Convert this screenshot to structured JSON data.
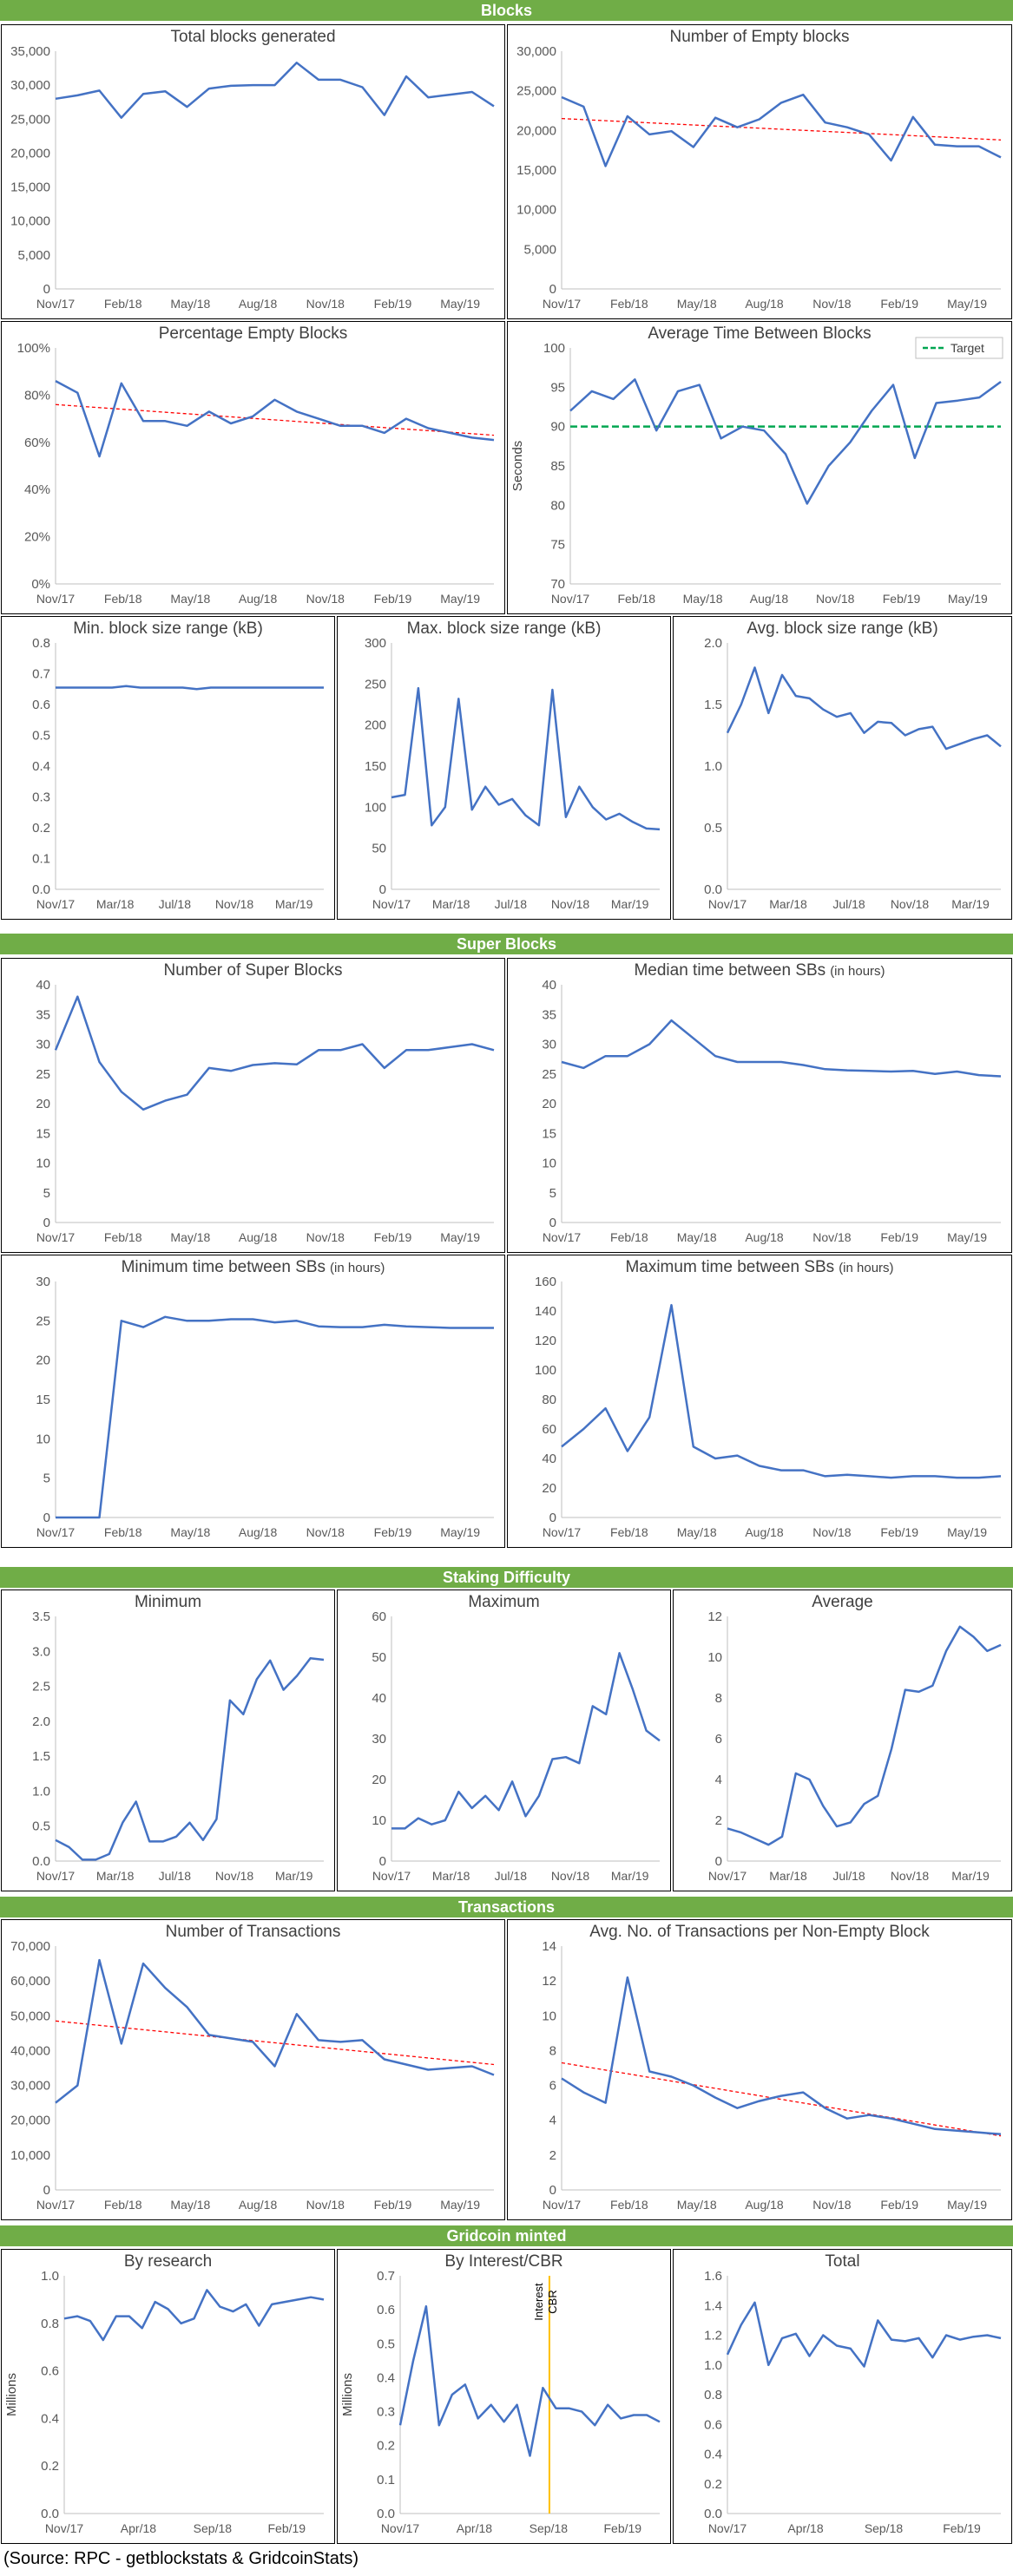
{
  "sections": {
    "blocks": "Blocks",
    "super_blocks": "Super Blocks",
    "staking": "Staking Difficulty",
    "transactions": "Transactions",
    "minted": "Gridcoin minted"
  },
  "source": "(Source: RPC - getblockstats & GridcoinStats)",
  "colors": {
    "series": "#4472c4",
    "trend": "#ff0000",
    "target": "#00a651",
    "marker": "#ffc000",
    "header": "#70ad47"
  },
  "chart_data": [
    {
      "id": "total_blocks",
      "type": "line",
      "title": "Total blocks generated",
      "ylim": [
        0,
        35000
      ],
      "yticks": [
        0,
        5000,
        10000,
        15000,
        20000,
        25000,
        30000,
        35000
      ],
      "yfmt": "comma",
      "xticks": [
        "Nov/17",
        "Feb/18",
        "May/18",
        "Aug/18",
        "Nov/18",
        "Feb/19",
        "May/19"
      ],
      "series": [
        {
          "values": [
            28000,
            28500,
            29200,
            25200,
            28700,
            29100,
            26800,
            29500,
            29900,
            30000,
            30000,
            33300,
            30800,
            30800,
            29700,
            25600,
            31300,
            28200,
            28600,
            29000,
            26900
          ]
        }
      ]
    },
    {
      "id": "empty_blocks",
      "type": "line",
      "title": "Number of Empty blocks",
      "ylim": [
        0,
        30000
      ],
      "yticks": [
        0,
        5000,
        10000,
        15000,
        20000,
        25000,
        30000
      ],
      "yfmt": "comma",
      "xticks": [
        "Nov/17",
        "Feb/18",
        "May/18",
        "Aug/18",
        "Nov/18",
        "Feb/19",
        "May/19"
      ],
      "trend": [
        21500,
        18800
      ],
      "series": [
        {
          "values": [
            24200,
            23000,
            15500,
            21800,
            19500,
            19900,
            17900,
            21600,
            20400,
            21400,
            23500,
            24500,
            21000,
            20400,
            19500,
            16200,
            21700,
            18200,
            18000,
            18000,
            16600
          ]
        }
      ]
    },
    {
      "id": "pct_empty",
      "type": "line",
      "title": "Percentage Empty Blocks",
      "ylim": [
        0,
        100
      ],
      "yticks": [
        0,
        20,
        40,
        60,
        80,
        100
      ],
      "yfmt": "pct",
      "xticks": [
        "Nov/17",
        "Feb/18",
        "May/18",
        "Aug/18",
        "Nov/18",
        "Feb/19",
        "May/19"
      ],
      "trend": [
        76,
        63
      ],
      "series": [
        {
          "values": [
            86,
            81,
            54,
            85,
            69,
            69,
            67,
            73,
            68,
            71,
            78,
            73,
            70,
            67,
            67,
            64,
            70,
            66,
            64,
            62,
            61
          ]
        }
      ]
    },
    {
      "id": "avg_time",
      "type": "line",
      "title": "Average Time Between Blocks",
      "ylabel": "Seconds",
      "ylim": [
        70,
        100
      ],
      "yticks": [
        70,
        75,
        80,
        85,
        90,
        95,
        100
      ],
      "xticks": [
        "Nov/17",
        "Feb/18",
        "May/18",
        "Aug/18",
        "Nov/18",
        "Feb/19",
        "May/19"
      ],
      "target": 90,
      "legend": "Target",
      "series": [
        {
          "values": [
            92,
            94.5,
            93.5,
            96,
            89.5,
            94.5,
            95.3,
            88.5,
            90,
            89.5,
            86.5,
            80.2,
            85,
            88,
            92,
            95.3,
            86,
            93,
            93.3,
            93.7,
            95.7
          ]
        }
      ]
    },
    {
      "id": "min_block_size",
      "type": "line",
      "title": "Min. block size range (kB)",
      "ylim": [
        0,
        0.8
      ],
      "yticks": [
        0,
        0.1,
        0.2,
        0.3,
        0.4,
        0.5,
        0.6,
        0.7,
        0.8
      ],
      "yfmt": "d1",
      "xticks": [
        "Nov/17",
        "Mar/18",
        "Jul/18",
        "Nov/18",
        "Mar/19"
      ],
      "series": [
        {
          "values": [
            0.655,
            0.655,
            0.655,
            0.655,
            0.655,
            0.66,
            0.655,
            0.655,
            0.655,
            0.655,
            0.65,
            0.655,
            0.655,
            0.655,
            0.655,
            0.655,
            0.655,
            0.655,
            0.655,
            0.655
          ]
        }
      ]
    },
    {
      "id": "max_block_size",
      "type": "line",
      "title": "Max. block size range (kB)",
      "ylim": [
        0,
        300
      ],
      "yticks": [
        0,
        50,
        100,
        150,
        200,
        250,
        300
      ],
      "xticks": [
        "Nov/17",
        "Mar/18",
        "Jul/18",
        "Nov/18",
        "Mar/19"
      ],
      "series": [
        {
          "values": [
            112,
            115,
            245,
            78,
            100,
            232,
            97,
            125,
            103,
            110,
            90,
            78,
            243,
            88,
            125,
            100,
            85,
            92,
            82,
            74,
            73
          ]
        }
      ]
    },
    {
      "id": "avg_block_size",
      "type": "line",
      "title": "Avg. block size range (kB)",
      "ylim": [
        0,
        2
      ],
      "yticks": [
        0,
        0.5,
        1.0,
        1.5,
        2.0
      ],
      "yfmt": "d1",
      "xticks": [
        "Nov/17",
        "Mar/18",
        "Jul/18",
        "Nov/18",
        "Mar/19"
      ],
      "series": [
        {
          "values": [
            1.27,
            1.5,
            1.8,
            1.43,
            1.74,
            1.57,
            1.55,
            1.46,
            1.4,
            1.43,
            1.27,
            1.36,
            1.35,
            1.25,
            1.3,
            1.32,
            1.14,
            1.18,
            1.22,
            1.25,
            1.16
          ]
        }
      ]
    },
    {
      "id": "num_super_blocks",
      "type": "line",
      "title": "Number of Super Blocks",
      "ylim": [
        0,
        40
      ],
      "yticks": [
        0,
        5,
        10,
        15,
        20,
        25,
        30,
        35,
        40
      ],
      "xticks": [
        "Nov/17",
        "Feb/18",
        "May/18",
        "Aug/18",
        "Nov/18",
        "Feb/19",
        "May/19"
      ],
      "series": [
        {
          "values": [
            29,
            38,
            27,
            22,
            19,
            20.5,
            21.5,
            26,
            25.5,
            26.5,
            26.8,
            26.6,
            29,
            29,
            30,
            26,
            29,
            29,
            29.5,
            30,
            29
          ]
        }
      ]
    },
    {
      "id": "median_sb",
      "type": "line",
      "title": "Median time between SBs",
      "title_suffix": "(in hours)",
      "ylim": [
        0,
        40
      ],
      "yticks": [
        0,
        5,
        10,
        15,
        20,
        25,
        30,
        35,
        40
      ],
      "xticks": [
        "Nov/17",
        "Feb/18",
        "May/18",
        "Aug/18",
        "Nov/18",
        "Feb/19",
        "May/19"
      ],
      "series": [
        {
          "values": [
            27,
            26,
            28,
            28,
            30,
            34,
            31,
            28,
            27,
            27,
            27,
            26.5,
            25.8,
            25.6,
            25.5,
            25.4,
            25.5,
            25,
            25.4,
            24.8,
            24.6
          ]
        }
      ]
    },
    {
      "id": "min_sb",
      "type": "line",
      "title": "Minimum time between SBs",
      "title_suffix": "(in hours)",
      "ylim": [
        0,
        30
      ],
      "yticks": [
        0,
        5,
        10,
        15,
        20,
        25,
        30
      ],
      "xticks": [
        "Nov/17",
        "Feb/18",
        "May/18",
        "Aug/18",
        "Nov/18",
        "Feb/19",
        "May/19"
      ],
      "series": [
        {
          "values": [
            0,
            0,
            0,
            25,
            24.2,
            25.5,
            25,
            25,
            25.2,
            25.2,
            24.8,
            25,
            24.3,
            24.2,
            24.2,
            24.5,
            24.3,
            24.2,
            24.1,
            24.1,
            24.1
          ]
        }
      ]
    },
    {
      "id": "max_sb",
      "type": "line",
      "title": "Maximum time  between SBs",
      "title_suffix": "(in hours)",
      "ylim": [
        0,
        160
      ],
      "yticks": [
        0,
        20,
        40,
        60,
        80,
        100,
        120,
        140,
        160
      ],
      "xticks": [
        "Nov/17",
        "Feb/18",
        "May/18",
        "Aug/18",
        "Nov/18",
        "Feb/19",
        "May/19"
      ],
      "series": [
        {
          "values": [
            48,
            60,
            74,
            45,
            68,
            144,
            48,
            40,
            42,
            35,
            32,
            32,
            28,
            29,
            28,
            27,
            28,
            28,
            27,
            27,
            28
          ]
        }
      ]
    },
    {
      "id": "diff_min",
      "type": "line",
      "title": "Minimum",
      "ylim": [
        0,
        3.5
      ],
      "yticks": [
        0,
        0.5,
        1.0,
        1.5,
        2.0,
        2.5,
        3.0,
        3.5
      ],
      "yfmt": "d1",
      "xticks": [
        "Nov/17",
        "Mar/18",
        "Jul/18",
        "Nov/18",
        "Mar/19"
      ],
      "series": [
        {
          "values": [
            0.3,
            0.2,
            0.02,
            0.02,
            0.1,
            0.55,
            0.85,
            0.28,
            0.28,
            0.35,
            0.55,
            0.3,
            0.6,
            2.3,
            2.1,
            2.6,
            2.87,
            2.45,
            2.65,
            2.9,
            2.88
          ]
        }
      ]
    },
    {
      "id": "diff_max",
      "type": "line",
      "title": "Maximum",
      "ylim": [
        0,
        60
      ],
      "yticks": [
        0,
        10,
        20,
        30,
        40,
        50,
        60
      ],
      "xticks": [
        "Nov/17",
        "Mar/18",
        "Jul/18",
        "Nov/18",
        "Mar/19"
      ],
      "series": [
        {
          "values": [
            8,
            8,
            10.5,
            9,
            10,
            17,
            13,
            16,
            12.5,
            19.5,
            11,
            16,
            25,
            25.5,
            24,
            38,
            36,
            51,
            42,
            32,
            29.5
          ]
        }
      ]
    },
    {
      "id": "diff_avg",
      "type": "line",
      "title": "Average",
      "ylim": [
        0,
        12
      ],
      "yticks": [
        0,
        2,
        4,
        6,
        8,
        10,
        12
      ],
      "xticks": [
        "Nov/17",
        "Mar/18",
        "Jul/18",
        "Nov/18",
        "Mar/19"
      ],
      "series": [
        {
          "values": [
            1.6,
            1.4,
            1.1,
            0.8,
            1.2,
            4.3,
            4,
            2.7,
            1.7,
            1.9,
            2.8,
            3.2,
            5.5,
            8.4,
            8.3,
            8.6,
            10.3,
            11.5,
            11,
            10.3,
            10.6
          ]
        }
      ]
    },
    {
      "id": "num_tx",
      "type": "line",
      "title": "Number of Transactions",
      "ylim": [
        0,
        70000
      ],
      "yticks": [
        0,
        10000,
        20000,
        30000,
        40000,
        50000,
        60000,
        70000
      ],
      "yfmt": "comma",
      "xticks": [
        "Nov/17",
        "Feb/18",
        "May/18",
        "Aug/18",
        "Nov/18",
        "Feb/19",
        "May/19"
      ],
      "trend": [
        48500,
        36000
      ],
      "series": [
        {
          "values": [
            25000,
            30000,
            66000,
            42000,
            65000,
            58000,
            52500,
            44500,
            43500,
            42500,
            35500,
            50500,
            43000,
            42500,
            43000,
            37500,
            36000,
            34500,
            35000,
            35500,
            33000
          ]
        }
      ]
    },
    {
      "id": "avg_tx",
      "type": "line",
      "title": "Avg. No. of Transactions per Non-Empty Block",
      "ylim": [
        0,
        14
      ],
      "yticks": [
        0,
        2,
        4,
        6,
        8,
        10,
        12,
        14
      ],
      "xticks": [
        "Nov/17",
        "Feb/18",
        "May/18",
        "Aug/18",
        "Nov/18",
        "Feb/19",
        "May/19"
      ],
      "trend": [
        7.3,
        3.1
      ],
      "series": [
        {
          "values": [
            6.4,
            5.6,
            5,
            12.2,
            6.8,
            6.5,
            6,
            5.3,
            4.7,
            5.1,
            5.4,
            5.6,
            4.7,
            4.1,
            4.3,
            4.1,
            3.8,
            3.5,
            3.4,
            3.3,
            3.2
          ]
        }
      ]
    },
    {
      "id": "by_research",
      "type": "line",
      "title": "By research",
      "ylabel": "Millions",
      "ylim": [
        0,
        1.0
      ],
      "yticks": [
        0,
        0.2,
        0.4,
        0.6,
        0.8,
        1.0
      ],
      "yfmt": "d1",
      "xticks": [
        "Nov/17",
        "Apr/18",
        "Sep/18",
        "Feb/19"
      ],
      "series": [
        {
          "values": [
            0.82,
            0.83,
            0.81,
            0.73,
            0.83,
            0.83,
            0.78,
            0.89,
            0.86,
            0.8,
            0.82,
            0.94,
            0.87,
            0.85,
            0.88,
            0.79,
            0.88,
            0.89,
            0.9,
            0.91,
            0.9
          ]
        }
      ]
    },
    {
      "id": "by_interest",
      "type": "line",
      "title": "By Interest/CBR",
      "ylabel": "Millions",
      "ylim": [
        0,
        0.7
      ],
      "yticks": [
        0,
        0.1,
        0.2,
        0.3,
        0.4,
        0.5,
        0.6,
        0.7
      ],
      "yfmt": "d1",
      "xticks": [
        "Nov/17",
        "Apr/18",
        "Sep/18",
        "Feb/19"
      ],
      "marker_x": 11.5,
      "marker_labels": [
        "Interest",
        "CBR"
      ],
      "series": [
        {
          "values": [
            0.26,
            0.45,
            0.61,
            0.26,
            0.35,
            0.38,
            0.28,
            0.32,
            0.27,
            0.32,
            0.17,
            0.37,
            0.31,
            0.31,
            0.3,
            0.26,
            0.32,
            0.28,
            0.29,
            0.29,
            0.27
          ]
        }
      ]
    },
    {
      "id": "minted_total",
      "type": "line",
      "title": "Total",
      "ylim": [
        0,
        1.6
      ],
      "yticks": [
        0,
        0.2,
        0.4,
        0.6,
        0.8,
        1.0,
        1.2,
        1.4,
        1.6
      ],
      "yfmt": "d1",
      "xticks": [
        "Nov/17",
        "Apr/18",
        "Sep/18",
        "Feb/19"
      ],
      "series": [
        {
          "values": [
            1.07,
            1.27,
            1.42,
            1.0,
            1.18,
            1.21,
            1.06,
            1.2,
            1.13,
            1.11,
            0.99,
            1.3,
            1.17,
            1.16,
            1.18,
            1.05,
            1.2,
            1.17,
            1.19,
            1.2,
            1.18
          ]
        }
      ]
    }
  ]
}
